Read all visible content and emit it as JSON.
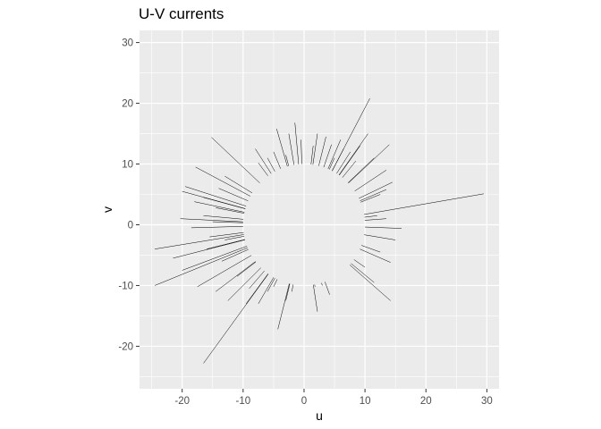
{
  "chart_data": {
    "type": "segment",
    "title": "U-V currents",
    "xlabel": "u",
    "ylabel": "v",
    "xlim": [
      -27,
      32
    ],
    "ylim": [
      -27,
      32
    ],
    "x_ticks": [
      -20,
      -10,
      0,
      10,
      20,
      30
    ],
    "y_ticks": [
      -20,
      -10,
      0,
      10,
      20,
      30
    ],
    "x_tick_labels": [
      "-20",
      "-10",
      "0",
      "10",
      "20",
      "30"
    ],
    "y_tick_labels": [
      "-20",
      "-10",
      "0",
      "10",
      "20",
      "30"
    ],
    "grid": true,
    "aspect": "equal",
    "panel_background": "#ebebeb",
    "grid_color": "#ffffff",
    "segment_color": "#000000",
    "note": "Each segment starts on the circle of radius 10 centred at (0,0) and extends outward to (u, v).",
    "segments": [
      {
        "u": 29.5,
        "v": 5.1
      },
      {
        "u": 16.0,
        "v": -0.6
      },
      {
        "u": 10.8,
        "v": 20.8
      },
      {
        "u": 14.0,
        "v": 13.2
      },
      {
        "u": 9.2,
        "v": 13.0
      },
      {
        "u": 7.6,
        "v": 12.0
      },
      {
        "u": 6.5,
        "v": 12.5
      },
      {
        "u": 6.0,
        "v": 14.0
      },
      {
        "u": 5.0,
        "v": 11.0
      },
      {
        "u": 3.6,
        "v": 14.5
      },
      {
        "u": 2.2,
        "v": 15.0
      },
      {
        "u": 1.5,
        "v": 13.0
      },
      {
        "u": -0.5,
        "v": 14.0
      },
      {
        "u": -1.5,
        "v": 16.8
      },
      {
        "u": -2.5,
        "v": 15.0
      },
      {
        "u": -3.0,
        "v": 11.5
      },
      {
        "u": -4.5,
        "v": 15.8
      },
      {
        "u": -5.0,
        "v": 12.0
      },
      {
        "u": -6.0,
        "v": 11.0
      },
      {
        "u": -7.5,
        "v": 10.2
      },
      {
        "u": -15.2,
        "v": 14.4
      },
      {
        "u": -17.8,
        "v": 9.5
      },
      {
        "u": -19.5,
        "v": 6.3
      },
      {
        "u": -20.0,
        "v": 5.5
      },
      {
        "u": -18.0,
        "v": 3.8
      },
      {
        "u": -16.5,
        "v": 4.5
      },
      {
        "u": -14.0,
        "v": 6.0
      },
      {
        "u": -20.3,
        "v": 1.0
      },
      {
        "u": -18.5,
        "v": -0.5
      },
      {
        "u": -24.5,
        "v": -4.0
      },
      {
        "u": -21.5,
        "v": -5.5
      },
      {
        "u": -20.0,
        "v": -7.5
      },
      {
        "u": -24.5,
        "v": -10.0
      },
      {
        "u": -17.5,
        "v": -10.2
      },
      {
        "u": -14.5,
        "v": -11.0
      },
      {
        "u": -12.5,
        "v": -12.5
      },
      {
        "u": -16.5,
        "v": -22.8
      },
      {
        "u": -9.5,
        "v": -13.0
      },
      {
        "u": -7.5,
        "v": -13.0
      },
      {
        "u": -4.3,
        "v": -17.2
      },
      {
        "u": -3.0,
        "v": -12.5
      },
      {
        "u": -2.0,
        "v": -11.0
      },
      {
        "u": 1.8,
        "v": -10.2
      },
      {
        "u": 2.2,
        "v": -14.3
      },
      {
        "u": 3.0,
        "v": -10.0
      },
      {
        "u": 4.2,
        "v": -11.5
      },
      {
        "u": 14.2,
        "v": -12.5
      },
      {
        "u": 11.5,
        "v": -9.5
      },
      {
        "u": 10.0,
        "v": -7.0
      },
      {
        "u": 14.2,
        "v": -6.2
      },
      {
        "u": 12.5,
        "v": -4.5
      },
      {
        "u": 15.0,
        "v": -2.5
      },
      {
        "u": 13.5,
        "v": 1.0
      },
      {
        "u": 12.0,
        "v": 1.5
      },
      {
        "u": 13.5,
        "v": 5.8
      },
      {
        "u": 14.5,
        "v": 7.0
      },
      {
        "u": 12.5,
        "v": 5.0
      },
      {
        "u": 13.5,
        "v": 9.0
      },
      {
        "u": 11.5,
        "v": 11.0
      },
      {
        "u": 8.5,
        "v": 10.5
      },
      {
        "u": 10.5,
        "v": 15.0
      },
      {
        "u": 4.5,
        "v": 13.2
      },
      {
        "u": -8.0,
        "v": 12.5
      },
      {
        "u": -13.0,
        "v": 8.0
      },
      {
        "u": -14.5,
        "v": 2.8
      },
      {
        "u": -16.5,
        "v": 1.5
      },
      {
        "u": -15.0,
        "v": 0.5
      },
      {
        "u": -15.5,
        "v": -2.0
      },
      {
        "u": -13.0,
        "v": -2.5
      },
      {
        "u": -16.0,
        "v": -4.0
      },
      {
        "u": -13.5,
        "v": -6.0
      },
      {
        "u": -11.0,
        "v": -8.5
      },
      {
        "u": -9.0,
        "v": -10.5
      },
      {
        "u": -6.0,
        "v": -11.0
      },
      {
        "u": -5.0,
        "v": -10.2
      }
    ]
  }
}
